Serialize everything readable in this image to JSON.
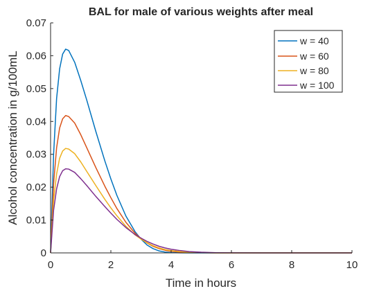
{
  "chart_data": {
    "type": "line",
    "title": "BAL for male of various weights after meal",
    "xlabel": "Time in hours",
    "ylabel": "Alcohol concentration in g/100mL",
    "xlim": [
      0,
      10
    ],
    "ylim": [
      0,
      0.07
    ],
    "x_ticks": [
      "0",
      "2",
      "4",
      "6",
      "8",
      "10"
    ],
    "y_ticks": [
      "0",
      "0.01",
      "0.02",
      "0.03",
      "0.04",
      "0.05",
      "0.06",
      "0.07"
    ],
    "grid": false,
    "legend_position": "top-right",
    "series": [
      {
        "name": "w = 40",
        "color": "#0072BD",
        "x": [
          0,
          0.1,
          0.2,
          0.3,
          0.4,
          0.5,
          0.6,
          0.8,
          1.0,
          1.2,
          1.5,
          1.8,
          2.0,
          2.2,
          2.5,
          2.8,
          3.0,
          3.2,
          3.4,
          3.6,
          3.8,
          4.0,
          4.3,
          4.6,
          5.0,
          5.5,
          6.0,
          7.0,
          8.0,
          9.0,
          10.0
        ],
        "y": [
          0,
          0.03,
          0.047,
          0.056,
          0.0605,
          0.062,
          0.0616,
          0.058,
          0.0525,
          0.0465,
          0.037,
          0.028,
          0.0225,
          0.0175,
          0.0112,
          0.0065,
          0.0042,
          0.0024,
          0.0013,
          0.0006,
          0.00025,
          0.0001,
          3e-05,
          1e-05,
          0,
          0,
          0,
          0,
          0,
          0,
          0
        ]
      },
      {
        "name": "w = 60",
        "color": "#D95319",
        "x": [
          0,
          0.1,
          0.2,
          0.3,
          0.4,
          0.5,
          0.6,
          0.8,
          1.0,
          1.2,
          1.5,
          1.8,
          2.0,
          2.2,
          2.5,
          2.8,
          3.0,
          3.2,
          3.4,
          3.6,
          3.8,
          4.0,
          4.3,
          4.6,
          5.0,
          5.5,
          6.0,
          7.0,
          8.0,
          9.0,
          10.0
        ],
        "y": [
          0,
          0.021,
          0.032,
          0.038,
          0.0408,
          0.0418,
          0.0415,
          0.0395,
          0.036,
          0.032,
          0.026,
          0.0203,
          0.0168,
          0.0135,
          0.0093,
          0.006,
          0.0044,
          0.003,
          0.002,
          0.0013,
          0.0008,
          0.0005,
          0.00025,
          0.0001,
          4e-05,
          1e-05,
          0,
          0,
          0,
          0,
          0
        ]
      },
      {
        "name": "w = 80",
        "color": "#EDB120",
        "x": [
          0,
          0.1,
          0.2,
          0.3,
          0.4,
          0.5,
          0.6,
          0.8,
          1.0,
          1.2,
          1.5,
          1.8,
          2.0,
          2.2,
          2.5,
          2.8,
          3.0,
          3.2,
          3.4,
          3.6,
          3.8,
          4.0,
          4.3,
          4.6,
          5.0,
          5.5,
          6.0,
          7.0,
          8.0,
          9.0,
          10.0
        ],
        "y": [
          0,
          0.016,
          0.024,
          0.0288,
          0.031,
          0.0318,
          0.0316,
          0.0302,
          0.0277,
          0.0248,
          0.0205,
          0.0163,
          0.0137,
          0.0113,
          0.0081,
          0.0055,
          0.0042,
          0.0031,
          0.0022,
          0.0015,
          0.001,
          0.0007,
          0.0004,
          0.0002,
          8e-05,
          2e-05,
          0,
          0,
          0,
          0,
          0
        ]
      },
      {
        "name": "w = 100",
        "color": "#7E2F8E",
        "x": [
          0,
          0.1,
          0.2,
          0.3,
          0.4,
          0.5,
          0.6,
          0.8,
          1.0,
          1.2,
          1.5,
          1.8,
          2.0,
          2.2,
          2.5,
          2.8,
          3.0,
          3.2,
          3.4,
          3.6,
          3.8,
          4.0,
          4.3,
          4.6,
          5.0,
          5.5,
          6.0,
          7.0,
          8.0,
          9.0,
          10.0
        ],
        "y": [
          0,
          0.013,
          0.0195,
          0.0232,
          0.025,
          0.0256,
          0.0255,
          0.0245,
          0.0226,
          0.0205,
          0.0172,
          0.0141,
          0.0121,
          0.0102,
          0.0077,
          0.0056,
          0.0045,
          0.0035,
          0.0027,
          0.002,
          0.0015,
          0.0011,
          0.0007,
          0.0004,
          0.0002,
          6e-05,
          2e-05,
          0,
          0,
          0,
          0
        ]
      }
    ]
  }
}
